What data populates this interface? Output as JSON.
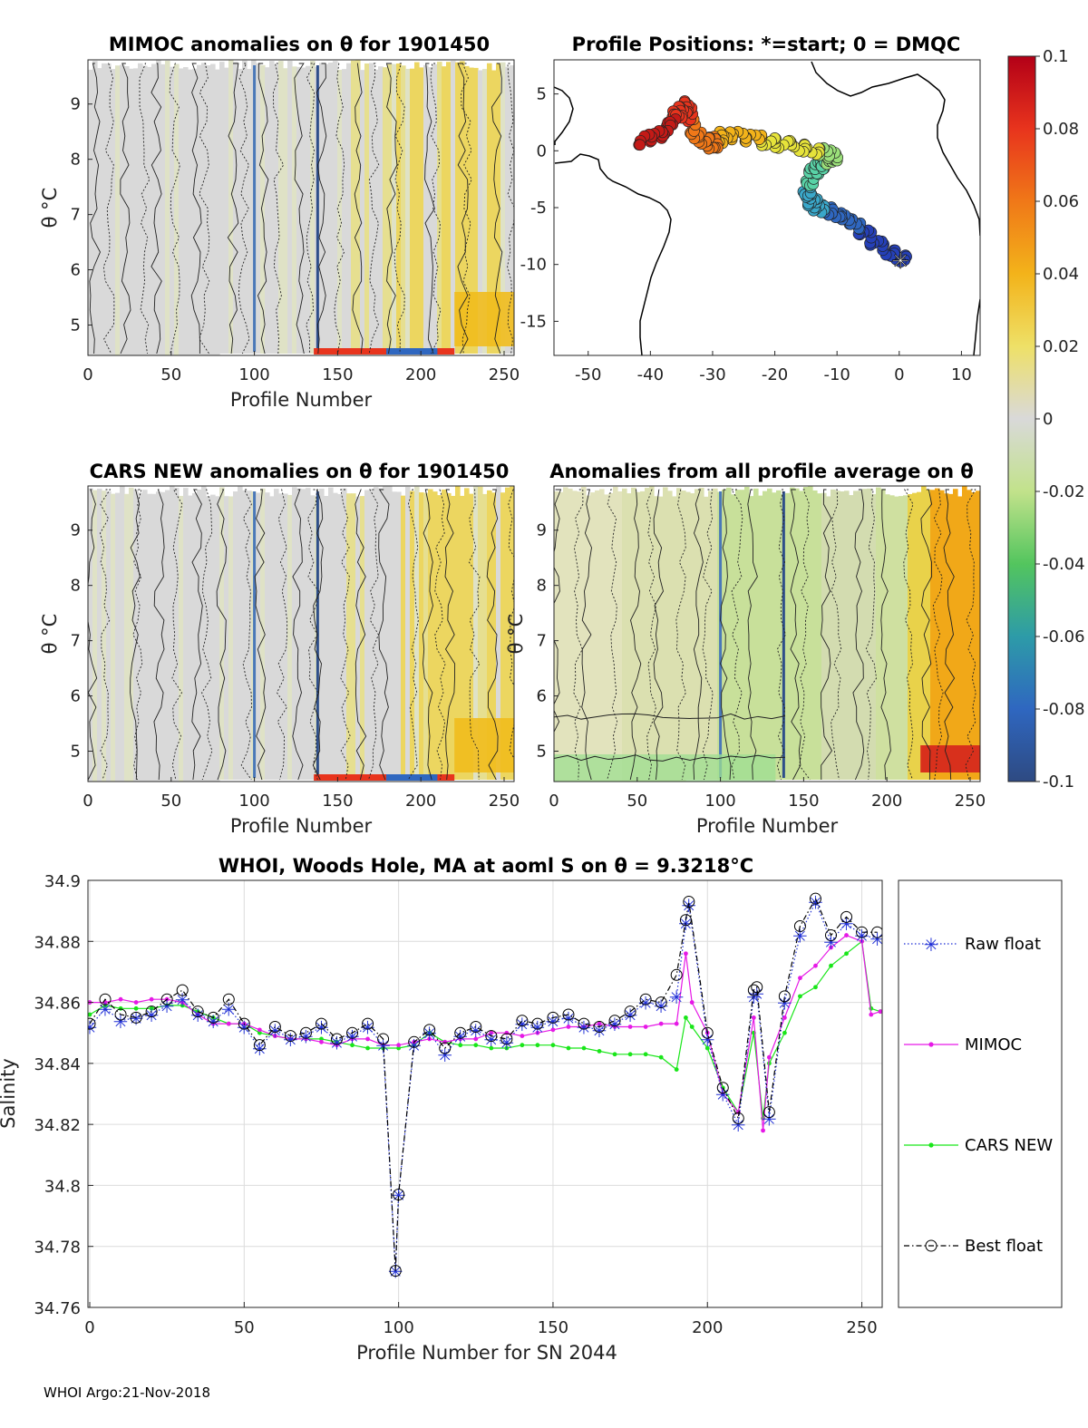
{
  "colors": {
    "raw": "#1f2fd6",
    "mimoc": "#e619e6",
    "cars": "#19e619",
    "best": "#000000",
    "neutral": "#d9d9d9"
  },
  "panels": {
    "mimoc": {
      "title": "MIMOC anomalies on θ  for 1901450",
      "xlabel": "Profile Number",
      "ylabel": "θ °C",
      "xticks": [
        "0",
        "50",
        "100",
        "150",
        "200",
        "250"
      ],
      "yticks": [
        "9",
        "8",
        "7",
        "6",
        "5"
      ]
    },
    "positions": {
      "title": "Profile Positions: *=start; 0 = DMQC",
      "xticks": [
        "-50",
        "-40",
        "-30",
        "-20",
        "-10",
        "0",
        "10"
      ],
      "yticks": [
        "5",
        "0",
        "-5",
        "-10",
        "-15"
      ]
    },
    "cars": {
      "title": "CARS NEW anomalies on θ for 1901450",
      "xlabel": "Profile Number",
      "ylabel": "θ °C",
      "xticks": [
        "0",
        "50",
        "100",
        "150",
        "200",
        "250"
      ],
      "yticks": [
        "9",
        "8",
        "7",
        "6",
        "5"
      ]
    },
    "average": {
      "title": "Anomalies from all profile average on θ",
      "xlabel": "Profile Number",
      "ylabel": "θ °C",
      "xticks": [
        "0",
        "50",
        "100",
        "150",
        "200",
        "250"
      ],
      "yticks": [
        "9",
        "8",
        "7",
        "6",
        "5"
      ]
    }
  },
  "colorbar": {
    "ticks": [
      "0.1",
      "0.08",
      "0.06",
      "0.04",
      "0.02",
      "0",
      "-0.02",
      "-0.04",
      "-0.06",
      "-0.08",
      "-0.1"
    ]
  },
  "chart_data": {
    "type": "line",
    "title": "WHOI, Woods Hole, MA at aoml S on θ = 9.3218",
    "title_unit": "°C",
    "xlabel": "Profile Number for SN 2044",
    "ylabel": "Salinity",
    "xlim": [
      0,
      256
    ],
    "ylim": [
      34.76,
      34.9
    ],
    "xticks": [
      "0",
      "50",
      "100",
      "150",
      "200",
      "250"
    ],
    "yticks": [
      "34.9",
      "34.88",
      "34.86",
      "34.84",
      "34.82",
      "34.8",
      "34.78",
      "34.76"
    ],
    "legend_position": "right",
    "series": [
      {
        "name": "Raw float",
        "style": "dotted-star",
        "x": [
          0,
          5,
          10,
          15,
          20,
          25,
          30,
          35,
          40,
          45,
          50,
          55,
          60,
          65,
          70,
          75,
          80,
          85,
          90,
          95,
          99,
          100,
          105,
          110,
          115,
          120,
          125,
          130,
          135,
          140,
          145,
          150,
          155,
          160,
          165,
          170,
          175,
          180,
          185,
          190,
          193,
          194,
          200,
          205,
          210,
          215,
          216,
          220,
          225,
          230,
          235,
          240,
          245,
          250,
          255
        ],
        "values": [
          34.852,
          34.858,
          34.854,
          34.855,
          34.856,
          34.859,
          34.861,
          34.856,
          34.854,
          34.858,
          34.852,
          34.845,
          34.851,
          34.848,
          34.849,
          34.852,
          34.847,
          34.849,
          34.852,
          34.846,
          34.772,
          34.797,
          34.846,
          34.85,
          34.843,
          34.849,
          34.851,
          34.848,
          34.847,
          34.853,
          34.852,
          34.854,
          34.855,
          34.852,
          34.851,
          34.853,
          34.856,
          34.86,
          34.859,
          34.862,
          34.886,
          34.892,
          34.848,
          34.83,
          34.82,
          34.862,
          34.863,
          34.822,
          34.86,
          34.882,
          34.893,
          34.88,
          34.886,
          34.882,
          34.881
        ]
      },
      {
        "name": "MIMOC",
        "style": "solid-dot",
        "x": [
          0,
          5,
          10,
          15,
          20,
          25,
          30,
          35,
          40,
          45,
          50,
          55,
          60,
          65,
          70,
          75,
          80,
          85,
          90,
          95,
          100,
          105,
          110,
          115,
          120,
          125,
          130,
          135,
          140,
          145,
          150,
          155,
          160,
          165,
          170,
          175,
          180,
          185,
          190,
          193,
          195,
          200,
          205,
          210,
          215,
          218,
          220,
          225,
          230,
          235,
          240,
          245,
          250,
          253,
          256
        ],
        "values": [
          34.86,
          34.86,
          34.861,
          34.86,
          34.861,
          34.861,
          34.86,
          34.856,
          34.853,
          34.853,
          34.853,
          34.851,
          34.849,
          34.848,
          34.848,
          34.847,
          34.846,
          34.848,
          34.848,
          34.846,
          34.846,
          34.847,
          34.848,
          34.847,
          34.848,
          34.848,
          34.85,
          34.85,
          34.849,
          34.85,
          34.851,
          34.852,
          34.852,
          34.853,
          34.852,
          34.852,
          34.852,
          34.853,
          34.853,
          34.876,
          34.86,
          34.85,
          34.83,
          34.824,
          34.855,
          34.818,
          34.842,
          34.855,
          34.868,
          34.872,
          34.878,
          34.882,
          34.88,
          34.856,
          34.857
        ]
      },
      {
        "name": "CARS NEW",
        "style": "solid-dot",
        "x": [
          0,
          5,
          10,
          15,
          20,
          25,
          30,
          35,
          40,
          45,
          50,
          55,
          60,
          65,
          70,
          75,
          80,
          85,
          90,
          95,
          100,
          105,
          110,
          115,
          120,
          125,
          130,
          135,
          140,
          145,
          150,
          155,
          160,
          165,
          170,
          175,
          180,
          185,
          190,
          193,
          195,
          200,
          205,
          210,
          215,
          218,
          220,
          225,
          230,
          235,
          240,
          245,
          250,
          253,
          256
        ],
        "values": [
          34.856,
          34.859,
          34.858,
          34.858,
          34.858,
          34.859,
          34.859,
          34.857,
          34.855,
          34.853,
          34.853,
          34.85,
          34.849,
          34.848,
          34.848,
          34.848,
          34.847,
          34.846,
          34.845,
          34.845,
          34.845,
          34.846,
          34.85,
          34.847,
          34.846,
          34.846,
          34.845,
          34.845,
          34.846,
          34.846,
          34.846,
          34.845,
          34.845,
          34.844,
          34.843,
          34.843,
          34.843,
          34.842,
          34.838,
          34.855,
          34.852,
          34.845,
          34.832,
          34.824,
          34.85,
          34.822,
          34.84,
          34.85,
          34.862,
          34.865,
          34.872,
          34.876,
          34.88,
          34.858,
          34.857
        ]
      },
      {
        "name": "Best float",
        "style": "dashdot-circle",
        "x": [
          0,
          5,
          10,
          15,
          20,
          25,
          30,
          35,
          40,
          45,
          50,
          55,
          60,
          65,
          70,
          75,
          80,
          85,
          90,
          95,
          99,
          100,
          105,
          110,
          115,
          120,
          125,
          130,
          135,
          140,
          145,
          150,
          155,
          160,
          165,
          170,
          175,
          180,
          185,
          190,
          193,
          194,
          200,
          205,
          210,
          215,
          216,
          220,
          225,
          230,
          235,
          240,
          245,
          250,
          255
        ],
        "values": [
          34.853,
          34.861,
          34.856,
          34.855,
          34.857,
          34.861,
          34.864,
          34.857,
          34.855,
          34.861,
          34.853,
          34.846,
          34.852,
          34.849,
          34.85,
          34.853,
          34.848,
          34.85,
          34.853,
          34.848,
          34.772,
          34.797,
          34.847,
          34.851,
          34.845,
          34.85,
          34.852,
          34.849,
          34.848,
          34.854,
          34.853,
          34.855,
          34.856,
          34.853,
          34.852,
          34.854,
          34.857,
          34.861,
          34.86,
          34.869,
          34.887,
          34.893,
          34.85,
          34.832,
          34.822,
          34.864,
          34.865,
          34.824,
          34.862,
          34.885,
          34.894,
          34.882,
          34.888,
          34.883,
          34.883
        ]
      }
    ]
  },
  "footer": {
    "text": "WHOI Argo:21-Nov-2018"
  }
}
